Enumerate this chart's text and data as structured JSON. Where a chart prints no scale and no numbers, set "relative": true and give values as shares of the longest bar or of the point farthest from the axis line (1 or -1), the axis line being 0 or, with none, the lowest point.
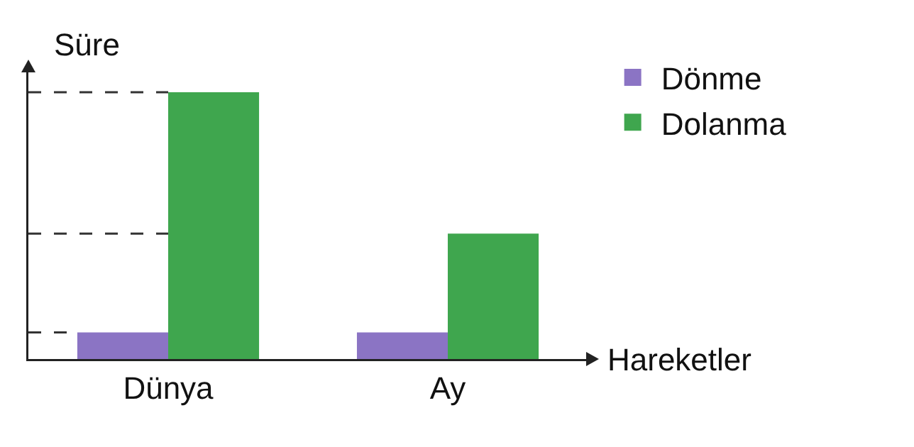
{
  "chart_data": {
    "type": "bar",
    "relative": true,
    "xlabel": "Hareketler",
    "ylabel": "Süre",
    "categories": [
      "Dünya",
      "Ay"
    ],
    "series": [
      {
        "name": "Dönme",
        "color": "#8b74c4",
        "values": [
          0.1,
          0.1
        ]
      },
      {
        "name": "Dolanma",
        "color": "#3fa64e",
        "values": [
          1,
          0.47
        ]
      }
    ],
    "ref_lines": [
      {
        "axis": "y",
        "value": 1,
        "line_style": "dashed",
        "color": "#333333"
      },
      {
        "axis": "y",
        "value": 0.47,
        "line_style": "dashed",
        "color": "#333333"
      },
      {
        "axis": "y",
        "value": 0.1,
        "line_style": "dashed",
        "color": "#333333"
      }
    ],
    "legend": "top right",
    "grid": false
  }
}
